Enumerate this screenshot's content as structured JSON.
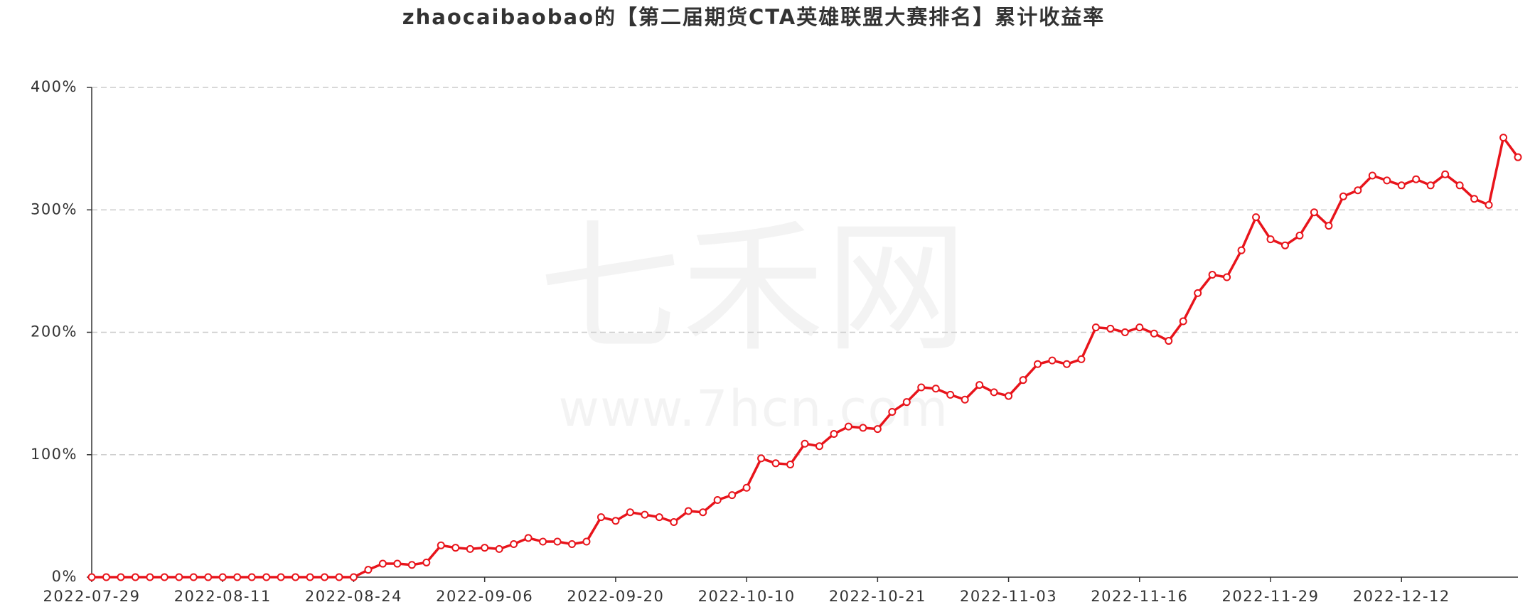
{
  "watermark": {
    "name": "七禾网",
    "url": "www.7hcn.com"
  },
  "chart_data": {
    "type": "line",
    "title": "zhaocaibaobao的【第二届期货CTA英雄联盟大赛排名】累计收益率",
    "categories": [
      "2022-07-29",
      null,
      null,
      null,
      null,
      null,
      null,
      null,
      null,
      "2022-08-11",
      null,
      null,
      null,
      null,
      null,
      null,
      null,
      null,
      "2022-08-24",
      null,
      null,
      null,
      null,
      null,
      null,
      null,
      null,
      "2022-09-06",
      null,
      null,
      null,
      null,
      null,
      null,
      null,
      null,
      "2022-09-20",
      null,
      null,
      null,
      null,
      null,
      null,
      null,
      null,
      "2022-10-10",
      null,
      null,
      null,
      null,
      null,
      null,
      null,
      null,
      "2022-10-21",
      null,
      null,
      null,
      null,
      null,
      null,
      null,
      null,
      "2022-11-03",
      null,
      null,
      null,
      null,
      null,
      null,
      null,
      null,
      "2022-11-16",
      null,
      null,
      null,
      null,
      null,
      null,
      null,
      null,
      "2022-11-29",
      null,
      null,
      null,
      null,
      null,
      null,
      null,
      null,
      "2022-12-12",
      null,
      null,
      null,
      null,
      null,
      null,
      null,
      null
    ],
    "values": [
      0,
      0,
      0,
      0,
      0,
      0,
      0,
      0,
      0,
      0,
      0,
      0,
      0,
      0,
      0,
      0,
      0,
      0,
      0,
      6,
      11,
      11,
      10,
      12,
      26,
      24,
      23,
      24,
      23,
      27,
      32,
      29,
      29,
      27,
      29,
      49,
      46,
      53,
      51,
      49,
      45,
      54,
      53,
      63,
      67,
      73,
      97,
      93,
      92,
      109,
      107,
      117,
      123,
      122,
      121,
      135,
      143,
      155,
      154,
      149,
      145,
      157,
      151,
      148,
      161,
      174,
      177,
      174,
      178,
      204,
      203,
      200,
      204,
      199,
      193,
      209,
      232,
      247,
      245,
      267,
      294,
      276,
      271,
      279,
      298,
      287,
      311,
      316,
      328,
      324,
      320,
      325,
      320,
      329,
      320,
      309,
      304,
      359,
      343
    ],
    "color": "#e8141b",
    "ylim": [
      0,
      400
    ],
    "yticks": [
      {
        "value": 0,
        "label": "0%"
      },
      {
        "value": 100,
        "label": "100%"
      },
      {
        "value": 200,
        "label": "200%"
      },
      {
        "value": 300,
        "label": "300%"
      },
      {
        "value": 400,
        "label": "400%"
      }
    ],
    "grid": true
  }
}
